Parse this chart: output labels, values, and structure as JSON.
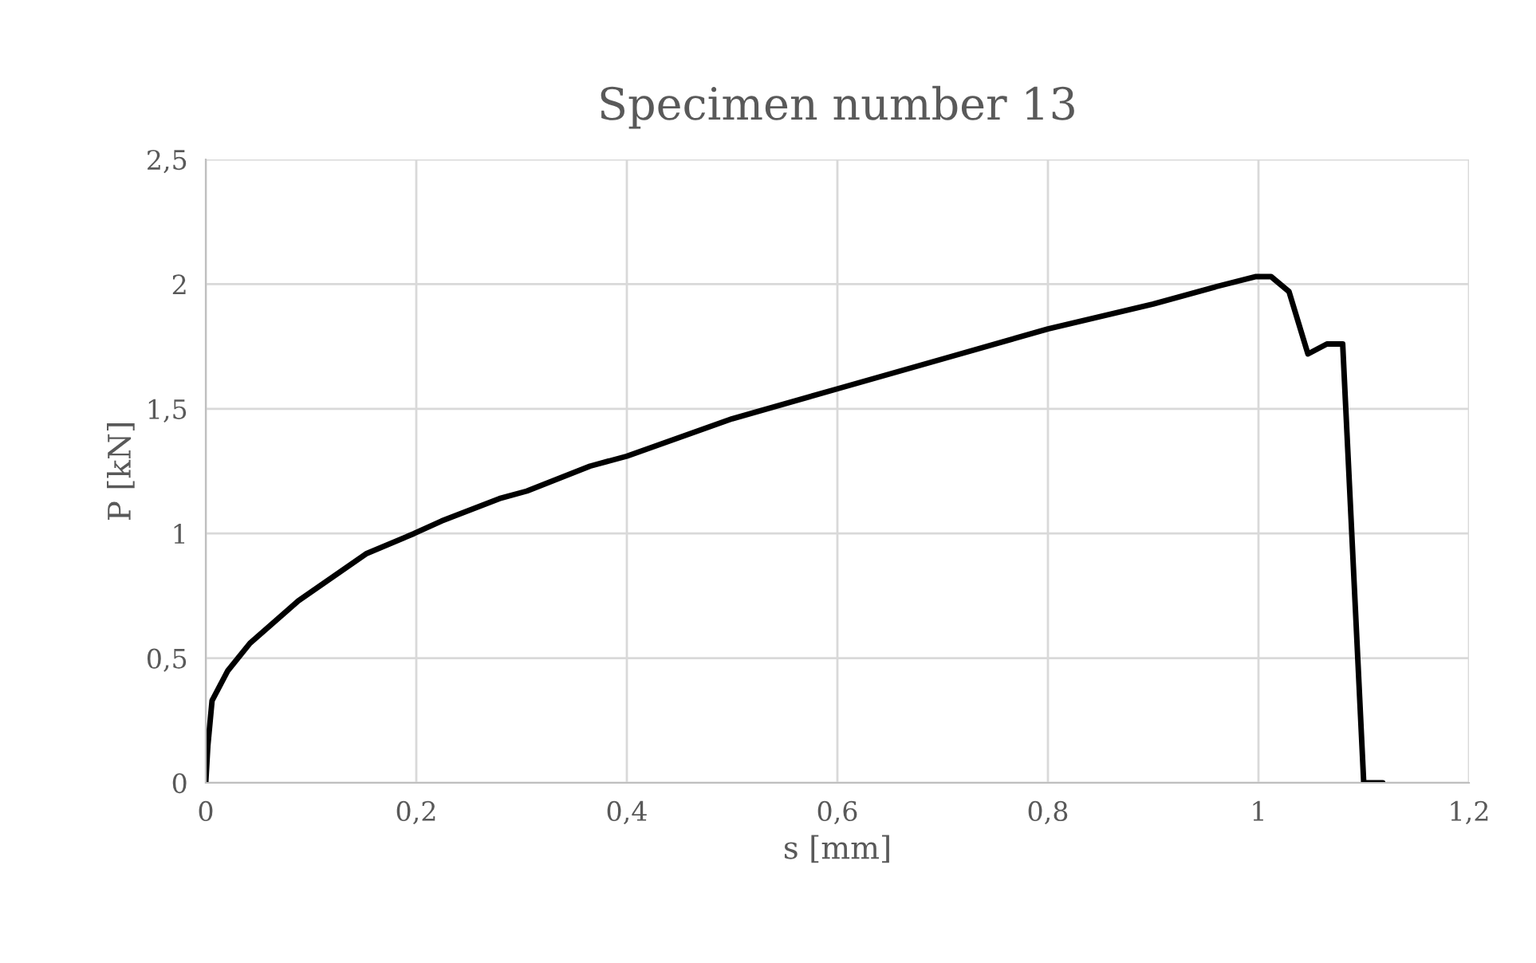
{
  "chart_data": {
    "type": "line",
    "title": "Specimen number 13",
    "xlabel": "s [mm]",
    "ylabel": "P [kN]",
    "series": [
      {
        "color": "#000000",
        "x": [
          0,
          0.002,
          0.006,
          0.021,
          0.042,
          0.088,
          0.153,
          0.198,
          0.224,
          0.279,
          0.305,
          0.365,
          0.4,
          0.5,
          0.6,
          0.7,
          0.8,
          0.9,
          0.96,
          0.997,
          1.012,
          1.029,
          1.047,
          1.065,
          1.08,
          1.1,
          1.118
        ],
        "values": [
          0,
          0.15,
          0.33,
          0.45,
          0.56,
          0.73,
          0.92,
          1.0,
          1.05,
          1.14,
          1.17,
          1.27,
          1.31,
          1.46,
          1.58,
          1.7,
          1.82,
          1.92,
          1.99,
          2.03,
          2.03,
          1.97,
          1.72,
          1.76,
          1.76,
          0,
          0
        ]
      }
    ],
    "xlim": [
      0,
      1.2
    ],
    "ylim": [
      0,
      2.5
    ],
    "xticks": [
      0,
      {
        "value": 0.2,
        "label": "0,2"
      },
      {
        "value": 0.4,
        "label": "0,4"
      },
      {
        "value": 0.6,
        "label": "0,6"
      },
      {
        "value": 0.8,
        "label": "0,8"
      },
      1,
      {
        "value": 1.2,
        "label": "1,2"
      }
    ],
    "yticks": [
      0,
      {
        "value": 0.5,
        "label": "0,5"
      },
      1,
      {
        "value": 1.5,
        "label": "1,5"
      },
      2,
      {
        "value": 2.5,
        "label": "2,5"
      }
    ],
    "grid": true,
    "marker": "none",
    "line_style": "solid"
  }
}
